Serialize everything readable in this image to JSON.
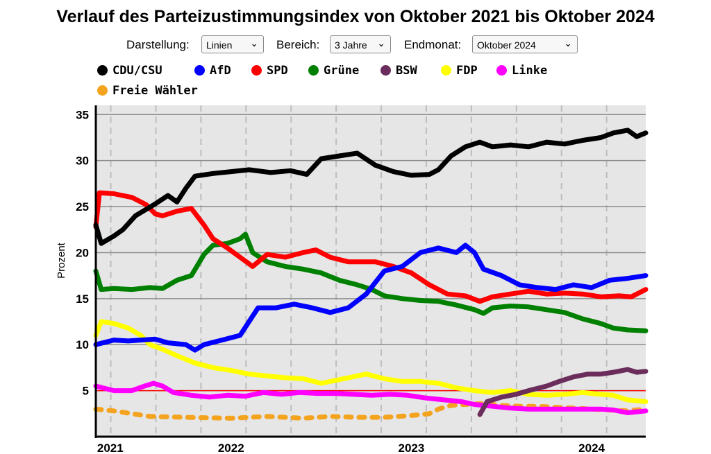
{
  "title": "Verlauf des Parteizustimmungsindex von Oktober 2021 bis Oktober 2024",
  "controls": {
    "darstellung_label": "Darstellung:",
    "darstellung_value": "Linien",
    "bereich_label": "Bereich:",
    "bereich_value": "3 Jahre",
    "endmonat_label": "Endmonat:",
    "endmonat_value": "Oktober 2024",
    "chevron_icon": "chevron-down-icon"
  },
  "chart_data": {
    "type": "line",
    "title": "Verlauf des Parteizustimmungsindex von Oktober 2021 bis Oktober 2024",
    "xlabel": "",
    "ylabel": "Prozent",
    "xlim": [
      2021.75,
      2024.8
    ],
    "ylim": [
      0,
      36
    ],
    "yticks": [
      5,
      10,
      15,
      20,
      25,
      30,
      35
    ],
    "xticks": [
      {
        "label": "2021",
        "x": 2021.83
      },
      {
        "label": "2022",
        "x": 2022.5
      },
      {
        "label": "2023",
        "x": 2023.5
      },
      {
        "label": "2024",
        "x": 2024.5
      }
    ],
    "grid": true,
    "legend_position": "top",
    "threshold_line": {
      "y": 5,
      "color": "#ff0000"
    },
    "series": [
      {
        "name": "CDU/CSU",
        "color": "#000000",
        "points": [
          [
            2021.75,
            23
          ],
          [
            2021.78,
            21
          ],
          [
            2021.85,
            21.8
          ],
          [
            2021.9,
            22.5
          ],
          [
            2021.97,
            24
          ],
          [
            2022.08,
            25.3
          ],
          [
            2022.15,
            26.2
          ],
          [
            2022.2,
            25.5
          ],
          [
            2022.25,
            27
          ],
          [
            2022.3,
            28.3
          ],
          [
            2022.4,
            28.6
          ],
          [
            2022.5,
            28.8
          ],
          [
            2022.6,
            29
          ],
          [
            2022.72,
            28.7
          ],
          [
            2022.83,
            28.9
          ],
          [
            2022.92,
            28.5
          ],
          [
            2023.0,
            30.2
          ],
          [
            2023.1,
            30.5
          ],
          [
            2023.2,
            30.8
          ],
          [
            2023.3,
            29.5
          ],
          [
            2023.4,
            28.8
          ],
          [
            2023.5,
            28.4
          ],
          [
            2023.6,
            28.5
          ],
          [
            2023.65,
            29
          ],
          [
            2023.72,
            30.5
          ],
          [
            2023.8,
            31.5
          ],
          [
            2023.88,
            32
          ],
          [
            2023.95,
            31.5
          ],
          [
            2024.05,
            31.7
          ],
          [
            2024.15,
            31.5
          ],
          [
            2024.25,
            32
          ],
          [
            2024.35,
            31.8
          ],
          [
            2024.45,
            32.2
          ],
          [
            2024.55,
            32.5
          ],
          [
            2024.62,
            33
          ],
          [
            2024.7,
            33.3
          ],
          [
            2024.75,
            32.6
          ],
          [
            2024.8,
            33
          ]
        ]
      },
      {
        "name": "AfD",
        "color": "#0000ff",
        "points": [
          [
            2021.75,
            10
          ],
          [
            2021.85,
            10.5
          ],
          [
            2021.93,
            10.4
          ],
          [
            2022.0,
            10.5
          ],
          [
            2022.08,
            10.6
          ],
          [
            2022.15,
            10.2
          ],
          [
            2022.25,
            10
          ],
          [
            2022.3,
            9.4
          ],
          [
            2022.35,
            10
          ],
          [
            2022.45,
            10.5
          ],
          [
            2022.55,
            11
          ],
          [
            2022.65,
            14
          ],
          [
            2022.75,
            14
          ],
          [
            2022.85,
            14.4
          ],
          [
            2022.95,
            14
          ],
          [
            2023.05,
            13.5
          ],
          [
            2023.15,
            14
          ],
          [
            2023.25,
            15.5
          ],
          [
            2023.35,
            18
          ],
          [
            2023.45,
            18.5
          ],
          [
            2023.55,
            20
          ],
          [
            2023.65,
            20.5
          ],
          [
            2023.75,
            20
          ],
          [
            2023.8,
            20.8
          ],
          [
            2023.85,
            20
          ],
          [
            2023.9,
            18.2
          ],
          [
            2024.0,
            17.5
          ],
          [
            2024.1,
            16.5
          ],
          [
            2024.2,
            16.2
          ],
          [
            2024.3,
            16
          ],
          [
            2024.4,
            16.5
          ],
          [
            2024.5,
            16.2
          ],
          [
            2024.6,
            17
          ],
          [
            2024.7,
            17.2
          ],
          [
            2024.8,
            17.5
          ]
        ]
      },
      {
        "name": "SPD",
        "color": "#ff0000",
        "points": [
          [
            2021.75,
            22.8
          ],
          [
            2021.77,
            26.5
          ],
          [
            2021.85,
            26.4
          ],
          [
            2021.95,
            26
          ],
          [
            2022.03,
            25.2
          ],
          [
            2022.08,
            24.2
          ],
          [
            2022.12,
            24
          ],
          [
            2022.2,
            24.5
          ],
          [
            2022.28,
            24.8
          ],
          [
            2022.35,
            23
          ],
          [
            2022.4,
            21.5
          ],
          [
            2022.48,
            20.5
          ],
          [
            2022.55,
            19.5
          ],
          [
            2022.62,
            18.5
          ],
          [
            2022.7,
            19.8
          ],
          [
            2022.8,
            19.5
          ],
          [
            2022.9,
            20
          ],
          [
            2022.97,
            20.3
          ],
          [
            2023.05,
            19.5
          ],
          [
            2023.15,
            19
          ],
          [
            2023.3,
            19
          ],
          [
            2023.4,
            18.5
          ],
          [
            2023.5,
            17.8
          ],
          [
            2023.6,
            16.5
          ],
          [
            2023.7,
            15.5
          ],
          [
            2023.8,
            15.3
          ],
          [
            2023.88,
            14.7
          ],
          [
            2023.95,
            15.2
          ],
          [
            2024.05,
            15.5
          ],
          [
            2024.15,
            15.8
          ],
          [
            2024.25,
            15.5
          ],
          [
            2024.35,
            15.6
          ],
          [
            2024.45,
            15.5
          ],
          [
            2024.55,
            15.2
          ],
          [
            2024.65,
            15.3
          ],
          [
            2024.72,
            15.2
          ],
          [
            2024.8,
            16
          ]
        ]
      },
      {
        "name": "Grüne",
        "color": "#008000",
        "points": [
          [
            2021.75,
            18
          ],
          [
            2021.78,
            16
          ],
          [
            2021.85,
            16.1
          ],
          [
            2021.95,
            16
          ],
          [
            2022.05,
            16.2
          ],
          [
            2022.12,
            16.1
          ],
          [
            2022.2,
            17
          ],
          [
            2022.28,
            17.5
          ],
          [
            2022.35,
            19.8
          ],
          [
            2022.4,
            20.8
          ],
          [
            2022.48,
            21
          ],
          [
            2022.55,
            21.5
          ],
          [
            2022.58,
            22
          ],
          [
            2022.62,
            20
          ],
          [
            2022.7,
            19
          ],
          [
            2022.8,
            18.5
          ],
          [
            2022.9,
            18.2
          ],
          [
            2023.0,
            17.8
          ],
          [
            2023.1,
            17
          ],
          [
            2023.2,
            16.5
          ],
          [
            2023.28,
            16
          ],
          [
            2023.35,
            15.3
          ],
          [
            2023.45,
            15
          ],
          [
            2023.55,
            14.8
          ],
          [
            2023.65,
            14.7
          ],
          [
            2023.75,
            14.3
          ],
          [
            2023.85,
            13.8
          ],
          [
            2023.9,
            13.4
          ],
          [
            2023.95,
            14
          ],
          [
            2024.05,
            14.2
          ],
          [
            2024.15,
            14.1
          ],
          [
            2024.25,
            13.8
          ],
          [
            2024.35,
            13.5
          ],
          [
            2024.45,
            12.8
          ],
          [
            2024.55,
            12.3
          ],
          [
            2024.62,
            11.8
          ],
          [
            2024.7,
            11.6
          ],
          [
            2024.8,
            11.5
          ]
        ]
      },
      {
        "name": "BSW",
        "color": "#6b2d5c",
        "points": [
          [
            2023.88,
            2.4
          ],
          [
            2023.92,
            3.8
          ],
          [
            2024.0,
            4.3
          ],
          [
            2024.08,
            4.6
          ],
          [
            2024.15,
            5
          ],
          [
            2024.25,
            5.5
          ],
          [
            2024.32,
            6
          ],
          [
            2024.4,
            6.5
          ],
          [
            2024.48,
            6.8
          ],
          [
            2024.55,
            6.8
          ],
          [
            2024.62,
            7
          ],
          [
            2024.7,
            7.3
          ],
          [
            2024.75,
            7
          ],
          [
            2024.8,
            7.1
          ]
        ]
      },
      {
        "name": "FDP",
        "color": "#ffff00",
        "points": [
          [
            2021.75,
            11
          ],
          [
            2021.78,
            12.5
          ],
          [
            2021.85,
            12.3
          ],
          [
            2021.93,
            11.8
          ],
          [
            2022.0,
            11
          ],
          [
            2022.05,
            10
          ],
          [
            2022.12,
            9.5
          ],
          [
            2022.2,
            8.8
          ],
          [
            2022.3,
            8
          ],
          [
            2022.4,
            7.5
          ],
          [
            2022.5,
            7.2
          ],
          [
            2022.6,
            6.8
          ],
          [
            2022.7,
            6.6
          ],
          [
            2022.8,
            6.4
          ],
          [
            2022.9,
            6.3
          ],
          [
            2023.0,
            5.8
          ],
          [
            2023.1,
            6.2
          ],
          [
            2023.2,
            6.6
          ],
          [
            2023.25,
            6.8
          ],
          [
            2023.35,
            6.3
          ],
          [
            2023.45,
            6
          ],
          [
            2023.55,
            6
          ],
          [
            2023.65,
            5.8
          ],
          [
            2023.75,
            5.3
          ],
          [
            2023.85,
            5
          ],
          [
            2023.95,
            4.8
          ],
          [
            2024.05,
            5
          ],
          [
            2024.15,
            4.6
          ],
          [
            2024.25,
            4.5
          ],
          [
            2024.35,
            4.6
          ],
          [
            2024.45,
            4.8
          ],
          [
            2024.55,
            4.6
          ],
          [
            2024.62,
            4.5
          ],
          [
            2024.7,
            4
          ],
          [
            2024.8,
            3.8
          ]
        ]
      },
      {
        "name": "Linke",
        "color": "#ff00ff",
        "points": [
          [
            2021.75,
            5.5
          ],
          [
            2021.85,
            5
          ],
          [
            2021.95,
            5
          ],
          [
            2022.02,
            5.5
          ],
          [
            2022.07,
            5.8
          ],
          [
            2022.12,
            5.5
          ],
          [
            2022.18,
            4.8
          ],
          [
            2022.28,
            4.5
          ],
          [
            2022.38,
            4.3
          ],
          [
            2022.48,
            4.5
          ],
          [
            2022.58,
            4.4
          ],
          [
            2022.68,
            4.8
          ],
          [
            2022.78,
            4.6
          ],
          [
            2022.88,
            4.8
          ],
          [
            2022.98,
            4.7
          ],
          [
            2023.08,
            4.7
          ],
          [
            2023.18,
            4.6
          ],
          [
            2023.28,
            4.5
          ],
          [
            2023.38,
            4.6
          ],
          [
            2023.48,
            4.5
          ],
          [
            2023.58,
            4.2
          ],
          [
            2023.68,
            4
          ],
          [
            2023.78,
            3.8
          ],
          [
            2023.85,
            3.5
          ],
          [
            2023.95,
            3.3
          ],
          [
            2024.05,
            3.1
          ],
          [
            2024.15,
            3
          ],
          [
            2024.25,
            3
          ],
          [
            2024.35,
            3
          ],
          [
            2024.45,
            3
          ],
          [
            2024.55,
            3
          ],
          [
            2024.62,
            2.9
          ],
          [
            2024.7,
            2.6
          ],
          [
            2024.8,
            2.8
          ]
        ]
      },
      {
        "name": "Freie Wähler",
        "color": "#f4a31e",
        "dashed": true,
        "points": [
          [
            2021.75,
            3
          ],
          [
            2021.85,
            2.8
          ],
          [
            2021.95,
            2.5
          ],
          [
            2022.05,
            2.2
          ],
          [
            2022.25,
            2.1
          ],
          [
            2022.5,
            2
          ],
          [
            2022.7,
            2.2
          ],
          [
            2022.9,
            2
          ],
          [
            2023.05,
            2.2
          ],
          [
            2023.2,
            2.1
          ],
          [
            2023.35,
            2.1
          ],
          [
            2023.5,
            2.3
          ],
          [
            2023.6,
            2.5
          ],
          [
            2023.65,
            3
          ],
          [
            2023.72,
            3.4
          ],
          [
            2023.8,
            3.5
          ],
          [
            2023.9,
            3.6
          ],
          [
            2024.0,
            3.4
          ],
          [
            2024.1,
            3.3
          ],
          [
            2024.2,
            3.3
          ],
          [
            2024.3,
            3.2
          ],
          [
            2024.4,
            3.1
          ],
          [
            2024.5,
            3
          ],
          [
            2024.6,
            2.9
          ],
          [
            2024.7,
            2.8
          ],
          [
            2024.8,
            3
          ]
        ]
      }
    ]
  }
}
